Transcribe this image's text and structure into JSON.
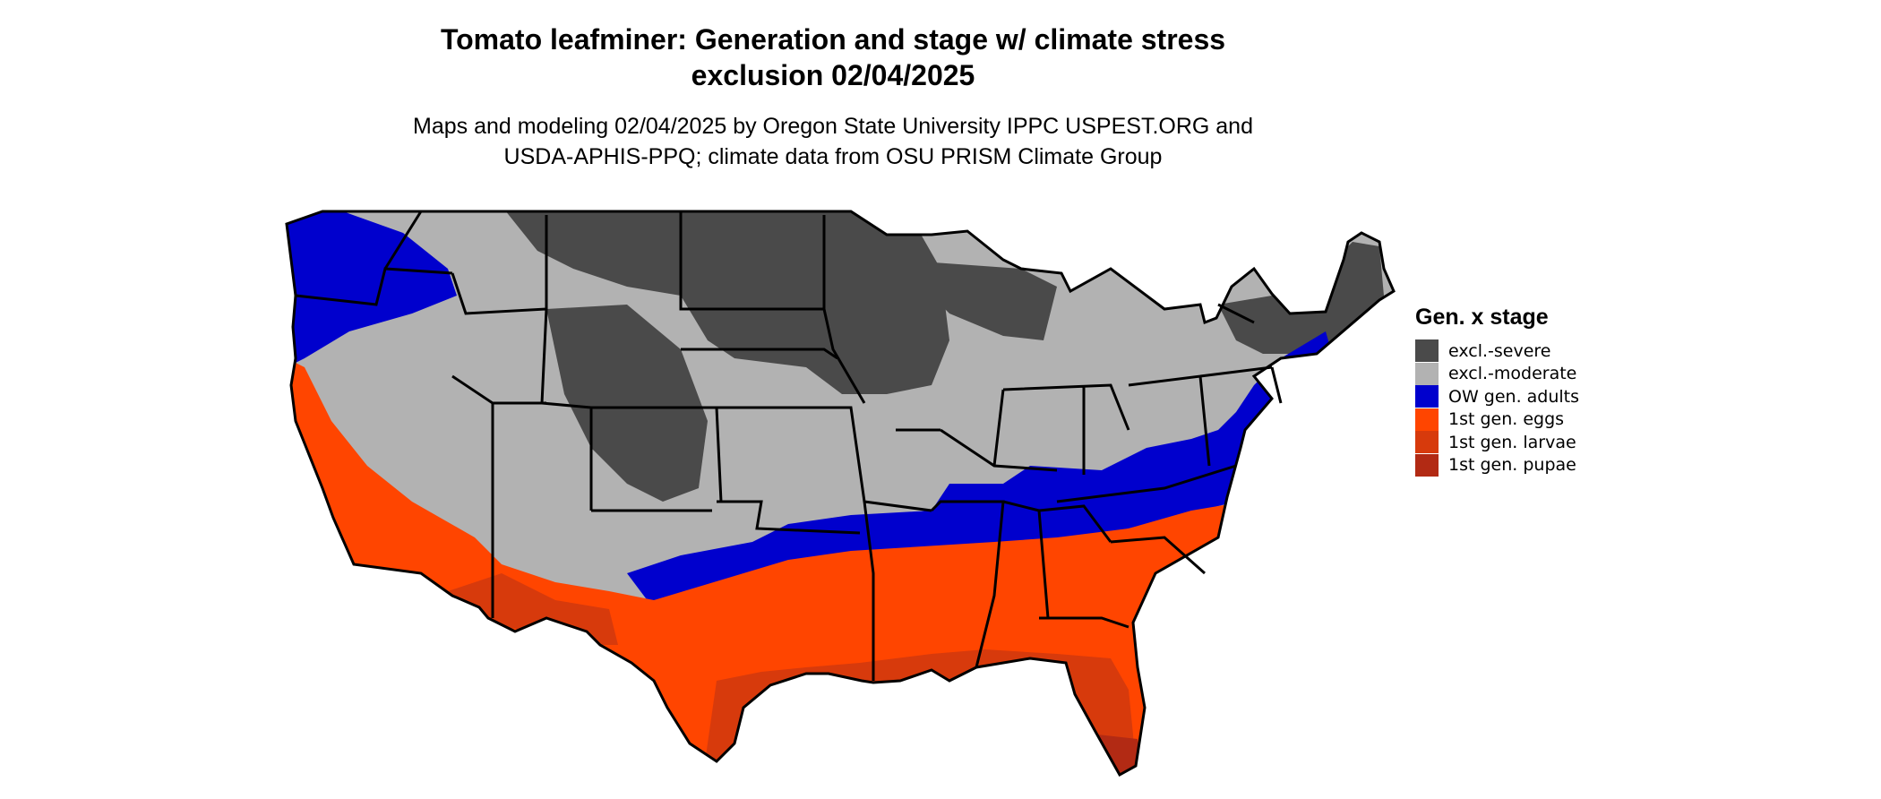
{
  "title_line1": "Tomato leafminer: Generation and stage w/ climate stress",
  "title_line2": "exclusion 02/04/2025",
  "subtitle_line1": "Maps and modeling 02/04/2025 by Oregon State University IPPC USPEST.ORG and",
  "subtitle_line2": "USDA-APHIS-PPQ; climate data from OSU PRISM Climate Group",
  "legend": {
    "title": "Gen. x stage",
    "items": [
      {
        "label": "excl.-severe",
        "color": "#4a4a4a"
      },
      {
        "label": "excl.-moderate",
        "color": "#b2b2b2"
      },
      {
        "label": "OW gen. adults",
        "color": "#0000cd"
      },
      {
        "label": "1st gen. eggs",
        "color": "#ff4500"
      },
      {
        "label": "1st gen. larvae",
        "color": "#d73a0c"
      },
      {
        "label": "1st gen. pupae",
        "color": "#b22a14"
      }
    ]
  }
}
